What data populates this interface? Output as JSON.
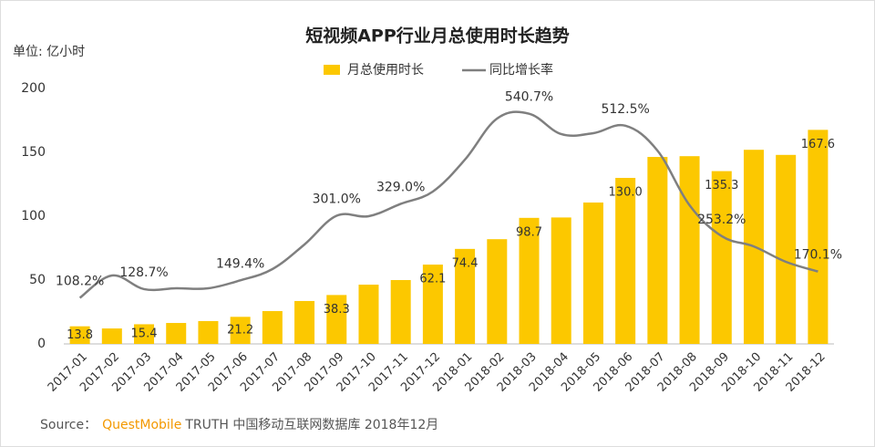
{
  "chart_data": {
    "type": "bar_line",
    "title": "短视频APP行业月总使用时长趋势",
    "unit_label": "单位: 亿小时",
    "categories": [
      "2017-01",
      "2017-02",
      "2017-03",
      "2017-04",
      "2017-05",
      "2017-06",
      "2017-07",
      "2017-08",
      "2017-09",
      "2017-10",
      "2017-11",
      "2017-12",
      "2018-01",
      "2018-02",
      "2018-03",
      "2018-04",
      "2018-05",
      "2018-06",
      "2018-07",
      "2018-08",
      "2018-09",
      "2018-10",
      "2018-11",
      "2018-12"
    ],
    "series": [
      {
        "name": "月总使用时长",
        "type": "bar",
        "color": "#fcc800",
        "values": [
          13.8,
          12.1,
          15.4,
          16.4,
          17.9,
          21.2,
          25.7,
          33.6,
          38.3,
          46.4,
          50,
          62.1,
          74.4,
          82,
          98.7,
          99,
          110.7,
          130,
          146.4,
          147,
          135.3,
          152,
          148,
          167.6
        ],
        "value_labels": [
          "13.8",
          null,
          "15.4",
          null,
          null,
          "21.2",
          null,
          null,
          "38.3",
          null,
          null,
          "62.1",
          "74.4",
          null,
          "98.7",
          null,
          null,
          "130.0",
          null,
          null,
          "135.3",
          null,
          null,
          "167.6"
        ]
      },
      {
        "name": "同比增长率",
        "type": "line",
        "axis": "y2",
        "color": "#7f7f7f",
        "values": [
          108.2,
          160.7,
          128.7,
          130.7,
          130.7,
          149.4,
          175.7,
          233.6,
          301.0,
          300,
          329.0,
          357.9,
          432.9,
          529.3,
          540.7,
          492.9,
          495,
          512.5,
          454,
          325.7,
          253.2,
          229,
          192.9,
          170.1
        ],
        "value_labels": [
          "108.2%",
          null,
          "128.7%",
          null,
          null,
          "149.4%",
          null,
          null,
          "301.0%",
          null,
          "329.0%",
          null,
          null,
          null,
          "540.7%",
          null,
          null,
          "512.5%",
          null,
          null,
          "253.2%",
          null,
          null,
          "170.1%"
        ]
      }
    ],
    "ylim": [
      0,
      200
    ],
    "yticks": [
      0,
      50,
      100,
      150,
      200
    ],
    "y2lim": [
      0,
      600
    ],
    "legend": "top",
    "source_prefix": "Source：",
    "source_brand": "QuestMobile",
    "source_rest": "TRUTH 中国移动互联网数据库 2018年12月"
  }
}
